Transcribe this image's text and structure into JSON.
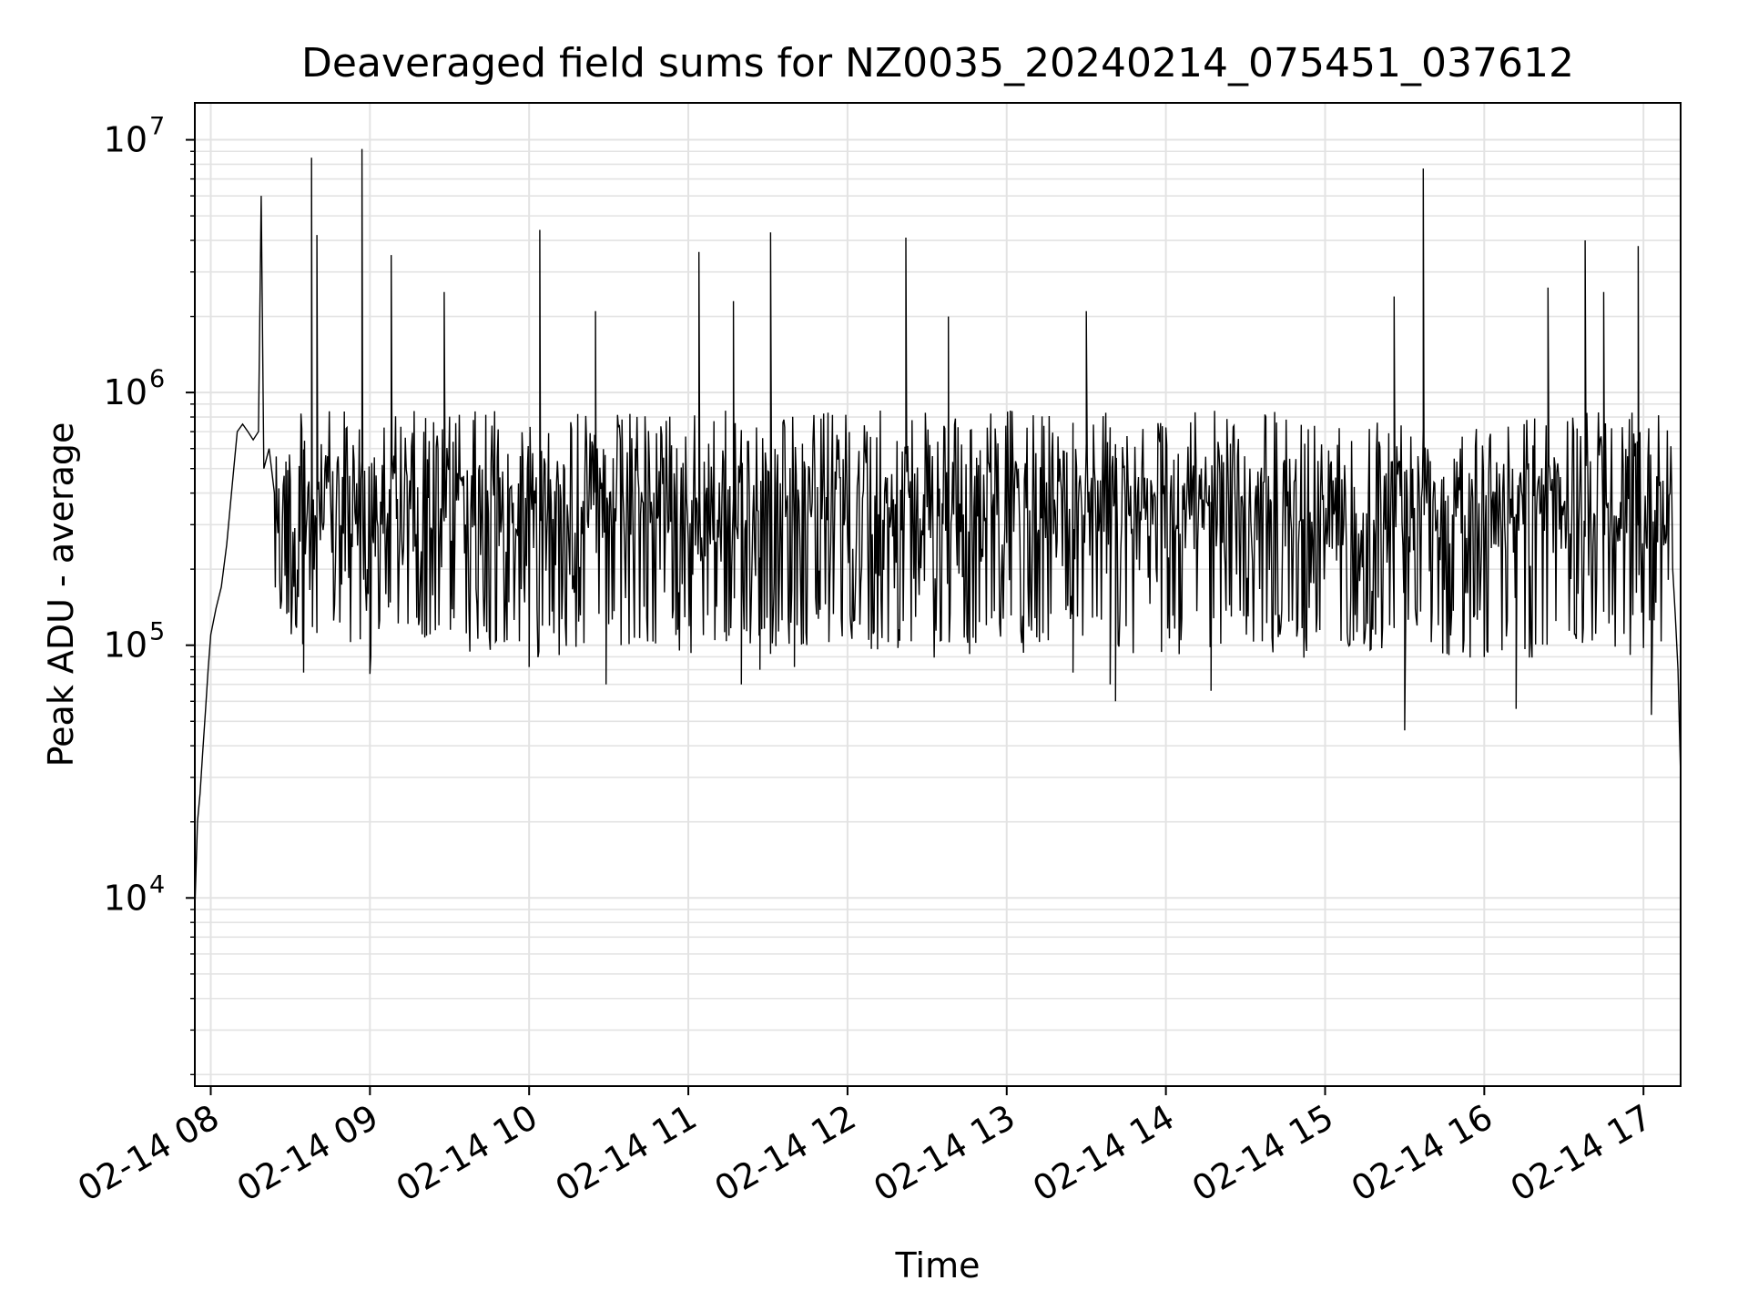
{
  "chart_data": {
    "type": "line",
    "title": "Deaveraged field sums for NZ0035_20240214_075451_037612",
    "xlabel": "Time",
    "ylabel": "Peak ADU - average",
    "yscale": "log",
    "grid": true,
    "x_axis": {
      "ticks": [
        "02-14 08",
        "02-14 09",
        "02-14 10",
        "02-14 11",
        "02-14 12",
        "02-14 13",
        "02-14 14",
        "02-14 15",
        "02-14 16",
        "02-14 17"
      ],
      "tick_values": [
        "2024-02-14 08:00",
        "2024-02-14 09:00",
        "2024-02-14 10:00",
        "2024-02-14 11:00",
        "2024-02-14 12:00",
        "2024-02-14 13:00",
        "2024-02-14 14:00",
        "2024-02-14 15:00",
        "2024-02-14 16:00",
        "2024-02-14 17:00"
      ],
      "range": [
        "2024-02-14 07:54",
        "2024-02-14 17:14"
      ]
    },
    "y_axis": {
      "tick_values": [
        10000,
        100000,
        1000000,
        10000000
      ],
      "tick_labels": [
        {
          "base": "10",
          "exp": "4"
        },
        {
          "base": "10",
          "exp": "5"
        },
        {
          "base": "10",
          "exp": "6"
        },
        {
          "base": "10",
          "exp": "7"
        }
      ],
      "range": [
        1800,
        14000000
      ]
    },
    "series": [
      {
        "color": "#000000",
        "points": [
          [
            "2024-02-14 07:54",
            9000
          ],
          [
            "2024-02-14 07:55",
            20000
          ],
          [
            "2024-02-14 07:56",
            26000
          ],
          [
            "2024-02-14 07:57",
            38000
          ],
          [
            "2024-02-14 07:58",
            55000
          ],
          [
            "2024-02-14 07:59",
            80000
          ],
          [
            "2024-02-14 08:00",
            110000
          ],
          [
            "2024-02-14 08:02",
            140000
          ],
          [
            "2024-02-14 08:04",
            170000
          ],
          [
            "2024-02-14 08:06",
            250000
          ],
          [
            "2024-02-14 08:08",
            420000
          ],
          [
            "2024-02-14 08:10",
            700000
          ],
          [
            "2024-02-14 08:12",
            750000
          ],
          [
            "2024-02-14 08:14",
            700000
          ],
          [
            "2024-02-14 08:16",
            650000
          ],
          [
            "2024-02-14 08:18",
            700000
          ],
          [
            "2024-02-14 08:19",
            6000000
          ],
          [
            "2024-02-14 08:20",
            500000
          ],
          [
            "2024-02-14 08:22",
            600000
          ],
          [
            "2024-02-14 08:24",
            400000
          ]
        ],
        "noise_region": {
          "from": "2024-02-14 08:24",
          "to": "2024-02-14 17:11",
          "typical_low": 100000,
          "typical_high": 1200000
        },
        "tail": [
          [
            "2024-02-14 17:11",
            200000
          ],
          [
            "2024-02-14 17:12",
            130000
          ],
          [
            "2024-02-14 17:13",
            80000
          ],
          [
            "2024-02-14 17:14",
            30000
          ]
        ],
        "spikes": [
          [
            "2024-02-14 08:38",
            8500000
          ],
          [
            "2024-02-14 08:40",
            4200000
          ],
          [
            "2024-02-14 08:57",
            9200000
          ],
          [
            "2024-02-14 09:08",
            3500000
          ],
          [
            "2024-02-14 09:28",
            2500000
          ],
          [
            "2024-02-14 10:04",
            4400000
          ],
          [
            "2024-02-14 10:25",
            2100000
          ],
          [
            "2024-02-14 11:04",
            3600000
          ],
          [
            "2024-02-14 11:17",
            2300000
          ],
          [
            "2024-02-14 11:31",
            4300000
          ],
          [
            "2024-02-14 12:22",
            4100000
          ],
          [
            "2024-02-14 12:38",
            2000000
          ],
          [
            "2024-02-14 13:30",
            2100000
          ],
          [
            "2024-02-14 15:26",
            2400000
          ],
          [
            "2024-02-14 15:37",
            7700000
          ],
          [
            "2024-02-14 16:24",
            2600000
          ],
          [
            "2024-02-14 16:38",
            4000000
          ],
          [
            "2024-02-14 16:45",
            2500000
          ],
          [
            "2024-02-14 16:58",
            3800000
          ]
        ],
        "dips": [
          [
            "2024-02-14 08:35",
            78000
          ],
          [
            "2024-02-14 09:00",
            77000
          ],
          [
            "2024-02-14 10:00",
            82000
          ],
          [
            "2024-02-14 10:29",
            70000
          ],
          [
            "2024-02-14 11:20",
            70000
          ],
          [
            "2024-02-14 11:27",
            80000
          ],
          [
            "2024-02-14 11:40",
            82000
          ],
          [
            "2024-02-14 13:25",
            78000
          ],
          [
            "2024-02-14 13:39",
            70000
          ],
          [
            "2024-02-14 13:41",
            60000
          ],
          [
            "2024-02-14 14:17",
            66000
          ],
          [
            "2024-02-14 15:30",
            46000
          ],
          [
            "2024-02-14 16:12",
            56000
          ],
          [
            "2024-02-14 17:03",
            53000
          ]
        ]
      }
    ]
  }
}
